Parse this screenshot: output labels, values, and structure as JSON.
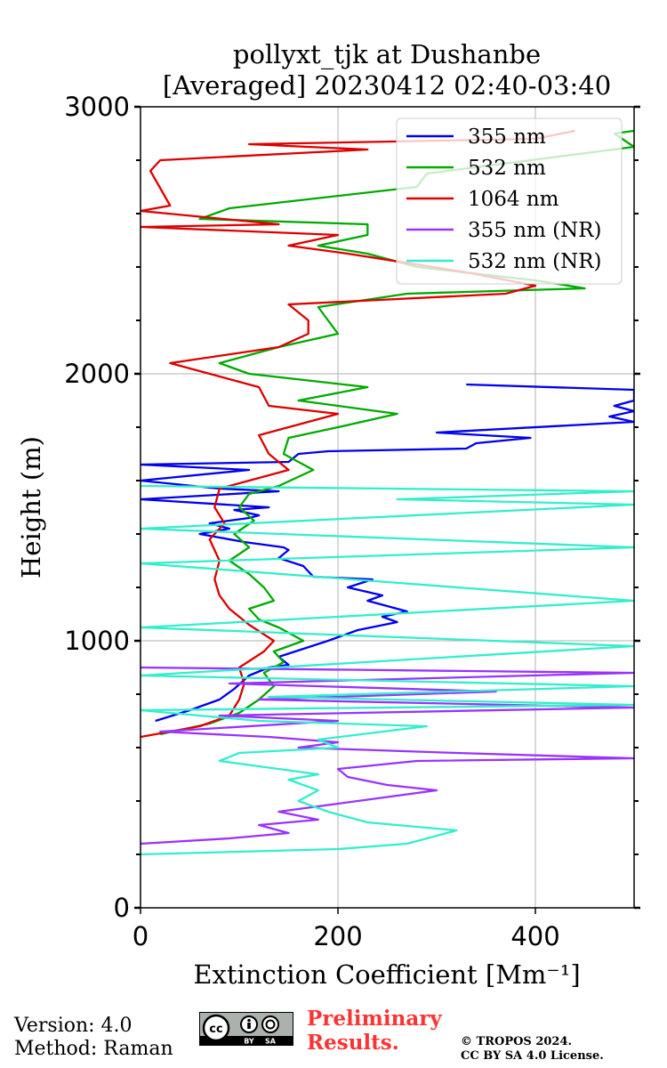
{
  "chart_data": {
    "type": "line",
    "title": "pollyxt_tjk at Dushanbe",
    "subtitle": "[Averaged] 20230412 02:40-03:40",
    "xlabel": "Extinction Coefficient [Mm⁻¹]",
    "ylabel": "Height (m)",
    "xlim": [
      0,
      500
    ],
    "ylim": [
      0,
      3000
    ],
    "xticks": [
      0,
      200,
      400
    ],
    "yticks": [
      0,
      1000,
      2000,
      3000
    ],
    "grid": true,
    "legend_position": "top-right",
    "series": [
      {
        "name": "355 nm",
        "color": "#0000ee",
        "points": [
          [
            15,
            700
          ],
          [
            50,
            740
          ],
          [
            80,
            780
          ],
          [
            95,
            820
          ],
          [
            110,
            870
          ],
          [
            130,
            900
          ],
          [
            150,
            910
          ],
          [
            140,
            940
          ],
          [
            165,
            970
          ],
          [
            190,
            1000
          ],
          [
            220,
            1040
          ],
          [
            260,
            1070
          ],
          [
            245,
            1090
          ],
          [
            270,
            1110
          ],
          [
            230,
            1150
          ],
          [
            245,
            1170
          ],
          [
            210,
            1200
          ],
          [
            235,
            1230
          ],
          [
            175,
            1240
          ],
          [
            165,
            1280
          ],
          [
            140,
            1310
          ],
          [
            150,
            1340
          ],
          [
            145,
            1350
          ],
          [
            105,
            1370
          ],
          [
            60,
            1400
          ],
          [
            90,
            1420
          ],
          [
            70,
            1440
          ],
          [
            110,
            1460
          ],
          [
            120,
            1470
          ],
          [
            95,
            1490
          ],
          [
            130,
            1500
          ],
          [
            0,
            1530
          ],
          [
            140,
            1560
          ],
          [
            80,
            1570
          ],
          [
            0,
            1600
          ],
          [
            110,
            1640
          ],
          [
            0,
            1660
          ],
          [
            150,
            1670
          ],
          [
            160,
            1700
          ],
          [
            190,
            1710
          ],
          [
            330,
            1720
          ],
          [
            340,
            1740
          ],
          [
            395,
            1760
          ],
          [
            300,
            1780
          ],
          [
            500,
            1820
          ],
          [
            475,
            1840
          ],
          [
            500,
            1860
          ],
          [
            480,
            1880
          ],
          [
            500,
            1900
          ],
          [
            500,
            1940
          ],
          [
            330,
            1960
          ]
        ]
      },
      {
        "name": "532 nm",
        "color": "#00aa00",
        "points": [
          [
            20,
            650
          ],
          [
            70,
            690
          ],
          [
            100,
            730
          ],
          [
            120,
            780
          ],
          [
            135,
            830
          ],
          [
            125,
            880
          ],
          [
            145,
            920
          ],
          [
            135,
            960
          ],
          [
            165,
            1000
          ],
          [
            140,
            1050
          ],
          [
            120,
            1080
          ],
          [
            110,
            1120
          ],
          [
            135,
            1150
          ],
          [
            125,
            1200
          ],
          [
            110,
            1250
          ],
          [
            90,
            1300
          ],
          [
            110,
            1350
          ],
          [
            95,
            1400
          ],
          [
            115,
            1450
          ],
          [
            100,
            1500
          ],
          [
            110,
            1550
          ],
          [
            140,
            1580
          ],
          [
            175,
            1640
          ],
          [
            145,
            1700
          ],
          [
            150,
            1760
          ],
          [
            200,
            1800
          ],
          [
            260,
            1850
          ],
          [
            160,
            1900
          ],
          [
            230,
            1950
          ],
          [
            110,
            2000
          ],
          [
            80,
            2040
          ],
          [
            140,
            2100
          ],
          [
            200,
            2150
          ],
          [
            190,
            2200
          ],
          [
            180,
            2250
          ],
          [
            270,
            2300
          ],
          [
            450,
            2320
          ],
          [
            400,
            2350
          ],
          [
            280,
            2400
          ],
          [
            230,
            2450
          ],
          [
            180,
            2480
          ],
          [
            230,
            2520
          ],
          [
            230,
            2560
          ],
          [
            60,
            2580
          ],
          [
            90,
            2620
          ],
          [
            280,
            2700
          ],
          [
            290,
            2750
          ],
          [
            500,
            2850
          ],
          [
            480,
            2900
          ],
          [
            500,
            2910
          ]
        ]
      },
      {
        "name": "1064 nm",
        "color": "#dd0000",
        "points": [
          [
            0,
            640
          ],
          [
            60,
            680
          ],
          [
            90,
            720
          ],
          [
            100,
            780
          ],
          [
            105,
            840
          ],
          [
            100,
            900
          ],
          [
            125,
            960
          ],
          [
            135,
            1000
          ],
          [
            110,
            1060
          ],
          [
            90,
            1120
          ],
          [
            80,
            1170
          ],
          [
            75,
            1230
          ],
          [
            80,
            1300
          ],
          [
            70,
            1380
          ],
          [
            85,
            1440
          ],
          [
            75,
            1500
          ],
          [
            80,
            1570
          ],
          [
            150,
            1640
          ],
          [
            130,
            1700
          ],
          [
            120,
            1770
          ],
          [
            200,
            1850
          ],
          [
            130,
            1880
          ],
          [
            120,
            1950
          ],
          [
            30,
            2040
          ],
          [
            140,
            2100
          ],
          [
            170,
            2150
          ],
          [
            170,
            2200
          ],
          [
            150,
            2260
          ],
          [
            370,
            2300
          ],
          [
            400,
            2330
          ],
          [
            330,
            2380
          ],
          [
            210,
            2450
          ],
          [
            150,
            2480
          ],
          [
            200,
            2520
          ],
          [
            0,
            2550
          ],
          [
            140,
            2560
          ],
          [
            0,
            2610
          ],
          [
            30,
            2630
          ],
          [
            10,
            2760
          ],
          [
            20,
            2800
          ],
          [
            230,
            2840
          ],
          [
            110,
            2860
          ],
          [
            400,
            2880
          ],
          [
            440,
            2910
          ]
        ]
      },
      {
        "name": "355 nm (NR)",
        "color": "#9933ff",
        "points": [
          [
            0,
            240
          ],
          [
            90,
            260
          ],
          [
            150,
            280
          ],
          [
            120,
            310
          ],
          [
            180,
            330
          ],
          [
            140,
            360
          ],
          [
            200,
            390
          ],
          [
            300,
            440
          ],
          [
            250,
            460
          ],
          [
            210,
            490
          ],
          [
            200,
            520
          ],
          [
            280,
            550
          ],
          [
            500,
            560
          ],
          [
            320,
            580
          ],
          [
            160,
            600
          ],
          [
            200,
            620
          ],
          [
            130,
            640
          ],
          [
            20,
            660
          ],
          [
            200,
            700
          ],
          [
            80,
            720
          ],
          [
            500,
            750
          ],
          [
            120,
            780
          ],
          [
            360,
            810
          ],
          [
            90,
            840
          ],
          [
            500,
            880
          ],
          [
            0,
            900
          ]
        ]
      },
      {
        "name": "532 nm (NR)",
        "color": "#33eecc",
        "points": [
          [
            0,
            200
          ],
          [
            200,
            220
          ],
          [
            270,
            240
          ],
          [
            320,
            290
          ],
          [
            230,
            320
          ],
          [
            190,
            360
          ],
          [
            160,
            400
          ],
          [
            180,
            440
          ],
          [
            150,
            480
          ],
          [
            180,
            500
          ],
          [
            80,
            550
          ],
          [
            100,
            580
          ],
          [
            200,
            600
          ],
          [
            180,
            630
          ],
          [
            290,
            680
          ],
          [
            120,
            700
          ],
          [
            0,
            740
          ],
          [
            500,
            760
          ],
          [
            130,
            790
          ],
          [
            500,
            830
          ],
          [
            0,
            870
          ],
          [
            500,
            980
          ],
          [
            0,
            1050
          ],
          [
            500,
            1150
          ],
          [
            0,
            1290
          ],
          [
            500,
            1350
          ],
          [
            0,
            1420
          ],
          [
            500,
            1510
          ],
          [
            260,
            1530
          ],
          [
            500,
            1560
          ],
          [
            0,
            1580
          ]
        ]
      }
    ]
  },
  "footer": {
    "version": "Version: 4.0",
    "method": "Method: Raman",
    "cc_text": "cc",
    "cc_by": "BY",
    "cc_sa": "SA",
    "preliminary_line1": "Preliminary",
    "preliminary_line2": "Results.",
    "copyright_line1": "© TROPOS 2024.",
    "copyright_line2": "CC BY SA 4.0 License."
  }
}
